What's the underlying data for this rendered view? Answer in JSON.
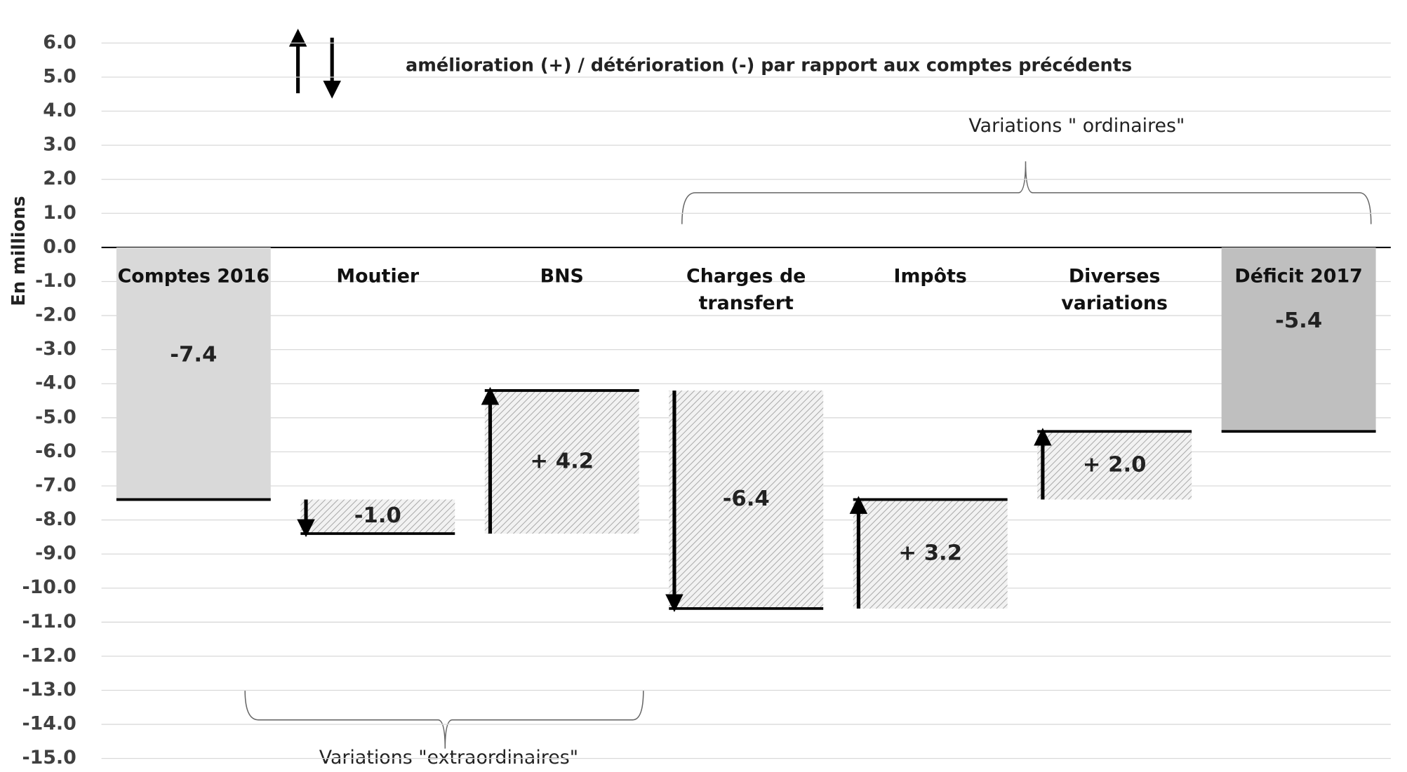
{
  "chart_data": {
    "type": "waterfall",
    "y_label": "En millions",
    "annotations": [
      "amélioration (+) / détérioration (-) par rapport  aux comptes précédents",
      "Variations \" ordinaires\"",
      "Variations \"extraordinaires\""
    ],
    "categories": [
      "Comptes 2016",
      "Moutier",
      "BNS",
      "Charges de transfert",
      "Impôts",
      "Diverses variations",
      "Déficit 2017"
    ],
    "values": [
      -7.4,
      -1.0,
      4.2,
      -6.4,
      3.2,
      2.0,
      -5.4
    ],
    "value_labels": [
      "-7.4",
      "-1.0",
      "+ 4.2",
      "-6.4",
      "+ 3.2",
      "+ 2.0",
      "-5.4"
    ],
    "colors": [
      "#d9d9d9",
      "#bfbfbf",
      "#bfbfbf",
      "#bfbfbf",
      "#bfbfbf",
      "#bfbfbf",
      "#bfbfbf"
    ],
    "ylim": [
      -15,
      6
    ],
    "yticks": [
      {
        "value": 6,
        "label": "6.0"
      },
      {
        "value": 5,
        "label": "5.0"
      },
      {
        "value": 4,
        "label": "4.0"
      },
      {
        "value": 3,
        "label": "3.0"
      },
      {
        "value": 2,
        "label": "2.0"
      },
      {
        "value": 1,
        "label": "1.0"
      },
      {
        "value": 0,
        "label": "0.0"
      },
      {
        "value": -1,
        "label": "-1.0"
      },
      {
        "value": -2,
        "label": "-2.0"
      },
      {
        "value": -3,
        "label": "-3.0"
      },
      {
        "value": -4,
        "label": "-4.0"
      },
      {
        "value": -5,
        "label": "-5.0"
      },
      {
        "value": -6,
        "label": "-6.0"
      },
      {
        "value": -7,
        "label": "-7.0"
      },
      {
        "value": -8,
        "label": "-8.0"
      },
      {
        "value": -9,
        "label": "-9.0"
      },
      {
        "value": -10,
        "label": "-10.0"
      },
      {
        "value": -11,
        "label": "-11.0"
      },
      {
        "value": -12,
        "label": "-12.0"
      },
      {
        "value": -13,
        "label": "-13.0"
      },
      {
        "value": -14,
        "label": "-14.0"
      },
      {
        "value": -15,
        "label": "-15.0"
      }
    ],
    "grid": true
  }
}
